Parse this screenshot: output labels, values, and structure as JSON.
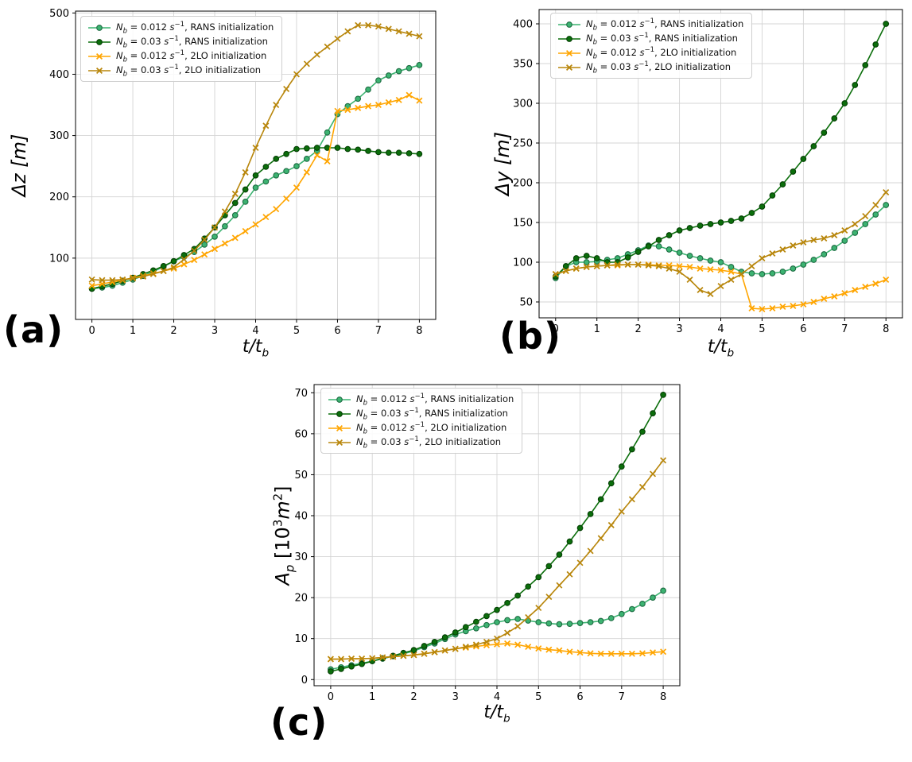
{
  "series_defs": [
    {
      "name": "nb-0012-rans",
      "marker": "o",
      "color": "#3cb371",
      "edge": "#1d6b42",
      "label_text": "N_b = 0.012 s^-1, RANS initialization",
      "label_segments": [
        {
          "text": "N",
          "style": "italic"
        },
        {
          "text": "b",
          "style": "subitalic"
        },
        {
          "text": " = 0.012 ",
          "style": ""
        },
        {
          "text": "s",
          "style": "italic"
        },
        {
          "text": "−1",
          "style": "sup"
        },
        {
          "text": ", RANS initialization",
          "style": ""
        }
      ]
    },
    {
      "name": "nb-003-rans",
      "marker": "o",
      "color": "#0b6e0b",
      "edge": "#053f05",
      "label_text": "N_b = 0.03 s^-1, RANS initialization",
      "label_segments": [
        {
          "text": "N",
          "style": "italic"
        },
        {
          "text": "b",
          "style": "subitalic"
        },
        {
          "text": " = 0.03 ",
          "style": ""
        },
        {
          "text": "s",
          "style": "italic"
        },
        {
          "text": "−1",
          "style": "sup"
        },
        {
          "text": ", RANS initialization",
          "style": ""
        }
      ]
    },
    {
      "name": "nb-0012-2lo",
      "marker": "x",
      "color": "#ffa500",
      "edge": "#ffa500",
      "label_text": "N_b = 0.012 s^-1, 2LO initialization",
      "label_segments": [
        {
          "text": "N",
          "style": "italic"
        },
        {
          "text": "b",
          "style": "subitalic"
        },
        {
          "text": " = 0.012 ",
          "style": ""
        },
        {
          "text": "s",
          "style": "italic"
        },
        {
          "text": "−1",
          "style": "sup"
        },
        {
          "text": ", 2LO initialization",
          "style": ""
        }
      ]
    },
    {
      "name": "nb-003-2lo",
      "marker": "x",
      "color": "#b8860b",
      "edge": "#b8860b",
      "label_text": "N_b = 0.03 s^-1, 2LO initialization",
      "label_segments": [
        {
          "text": "N",
          "style": "italic"
        },
        {
          "text": "b",
          "style": "subitalic"
        },
        {
          "text": " = 0.03 ",
          "style": ""
        },
        {
          "text": "s",
          "style": "italic"
        },
        {
          "text": "−1",
          "style": "sup"
        },
        {
          "text": ", 2LO initialization",
          "style": ""
        }
      ]
    }
  ],
  "xlabel_text": "t/t_b",
  "xlabel_segments": [
    {
      "text": "t/t",
      "style": "italic"
    },
    {
      "text": "b",
      "style": "subitalic"
    }
  ],
  "grid_color": "#d4d4d4",
  "chart_data": [
    {
      "id": "a",
      "type": "line",
      "panel_label": "(a)",
      "ylabel_text": "Δz [m]",
      "ylabel_segments": [
        {
          "text": "Δz [m]",
          "style": "italic"
        }
      ],
      "xlim": [
        -0.4,
        8.4
      ],
      "ylim": [
        0,
        503
      ],
      "xticks": [
        0,
        1,
        2,
        3,
        4,
        5,
        6,
        7,
        8
      ],
      "yticks": [
        100,
        200,
        300,
        400,
        500
      ],
      "grid": true,
      "legend_position": "upper left",
      "x": [
        0,
        0.25,
        0.5,
        0.75,
        1,
        1.25,
        1.5,
        1.75,
        2,
        2.25,
        2.5,
        2.75,
        3,
        3.25,
        3.5,
        3.75,
        4,
        4.25,
        4.5,
        4.75,
        5,
        5.25,
        5.5,
        5.75,
        6,
        6.25,
        6.5,
        6.75,
        7,
        7.25,
        7.5,
        7.75,
        8
      ],
      "series": [
        {
          "def": 0,
          "values": [
            50,
            52,
            55,
            60,
            65,
            71,
            78,
            86,
            95,
            102,
            110,
            122,
            135,
            152,
            170,
            192,
            215,
            225,
            235,
            242,
            250,
            262,
            275,
            305,
            335,
            348,
            360,
            375,
            390,
            398,
            405,
            410,
            415
          ]
        },
        {
          "def": 1,
          "values": [
            50,
            54,
            58,
            63,
            68,
            74,
            80,
            87,
            95,
            105,
            115,
            132,
            150,
            170,
            190,
            212,
            235,
            249,
            262,
            270,
            278,
            279,
            280,
            280,
            280,
            278,
            277,
            275,
            273,
            272,
            272,
            271,
            270
          ]
        },
        {
          "def": 2,
          "values": [
            55,
            58,
            61,
            64,
            68,
            71,
            75,
            79,
            83,
            90,
            97,
            106,
            115,
            124,
            133,
            144,
            155,
            167,
            180,
            197,
            215,
            240,
            268,
            258,
            340,
            342,
            345,
            348,
            350,
            354,
            358,
            366,
            357
          ]
        },
        {
          "def": 3,
          "values": [
            65,
            64,
            64,
            65,
            67,
            70,
            74,
            79,
            85,
            98,
            112,
            130,
            150,
            176,
            205,
            240,
            280,
            316,
            350,
            376,
            400,
            417,
            432,
            445,
            458,
            470,
            480,
            480,
            478,
            474,
            470,
            466,
            462
          ]
        }
      ]
    },
    {
      "id": "b",
      "type": "line",
      "panel_label": "(b)",
      "ylabel_text": "Δy [m]",
      "ylabel_segments": [
        {
          "text": "Δy [m]",
          "style": "italic"
        }
      ],
      "xlim": [
        -0.4,
        8.4
      ],
      "ylim": [
        30,
        418
      ],
      "xticks": [
        0,
        1,
        2,
        3,
        4,
        5,
        6,
        7,
        8
      ],
      "yticks": [
        50,
        100,
        150,
        200,
        250,
        300,
        350,
        400
      ],
      "grid": true,
      "legend_position": "upper left",
      "x": [
        0,
        0.25,
        0.5,
        0.75,
        1,
        1.25,
        1.5,
        1.75,
        2,
        2.25,
        2.5,
        2.75,
        3,
        3.25,
        3.5,
        3.75,
        4,
        4.25,
        4.5,
        4.75,
        5,
        5.25,
        5.5,
        5.75,
        6,
        6.25,
        6.5,
        6.75,
        7,
        7.25,
        7.5,
        7.75,
        8
      ],
      "series": [
        {
          "def": 0,
          "values": [
            80,
            95,
            100,
            100,
            101,
            103,
            105,
            110,
            115,
            121,
            120,
            116,
            112,
            108,
            105,
            102,
            100,
            94,
            88,
            86,
            85,
            86,
            88,
            92,
            97,
            103,
            110,
            118,
            127,
            137,
            148,
            160,
            172
          ]
        },
        {
          "def": 1,
          "values": [
            82,
            95,
            105,
            108,
            105,
            100,
            100,
            106,
            113,
            120,
            128,
            134,
            140,
            143,
            146,
            148,
            150,
            152,
            155,
            162,
            170,
            184,
            198,
            214,
            230,
            246,
            263,
            281,
            300,
            323,
            348,
            374,
            400
          ]
        },
        {
          "def": 2,
          "values": [
            85,
            89,
            92,
            94,
            95,
            96,
            96,
            97,
            97,
            97,
            96,
            96,
            95,
            94,
            92,
            91,
            90,
            88,
            85,
            42,
            41,
            42,
            44,
            45,
            47,
            50,
            54,
            57,
            61,
            65,
            69,
            73,
            78
          ]
        },
        {
          "def": 3,
          "values": [
            85,
            89,
            92,
            94,
            95,
            96,
            97,
            97,
            97,
            96,
            95,
            92,
            88,
            78,
            65,
            60,
            70,
            78,
            85,
            95,
            105,
            111,
            116,
            121,
            125,
            128,
            130,
            134,
            140,
            148,
            158,
            172,
            188
          ]
        }
      ]
    },
    {
      "id": "c",
      "type": "line",
      "panel_label": "(c)",
      "ylabel_text": "A_p [10^3 m^2]",
      "ylabel_segments": [
        {
          "text": "A",
          "style": "italic"
        },
        {
          "text": "p",
          "style": "subitalic"
        },
        {
          "text": " [10",
          "style": ""
        },
        {
          "text": "3",
          "style": "sup"
        },
        {
          "text": "m",
          "style": "italic"
        },
        {
          "text": "2",
          "style": "sup"
        },
        {
          "text": "]",
          "style": ""
        }
      ],
      "xlim": [
        -0.4,
        8.4
      ],
      "ylim": [
        -1.5,
        72
      ],
      "xticks": [
        0,
        1,
        2,
        3,
        4,
        5,
        6,
        7,
        8
      ],
      "yticks": [
        0,
        10,
        20,
        30,
        40,
        50,
        60,
        70
      ],
      "grid": true,
      "legend_position": "upper left",
      "x": [
        0,
        0.25,
        0.5,
        0.75,
        1,
        1.25,
        1.5,
        1.75,
        2,
        2.25,
        2.5,
        2.75,
        3,
        3.25,
        3.5,
        3.75,
        4,
        4.25,
        4.5,
        4.75,
        5,
        5.25,
        5.5,
        5.75,
        6,
        6.25,
        6.5,
        6.75,
        7,
        7.25,
        7.5,
        7.75,
        8
      ],
      "series": [
        {
          "def": 0,
          "values": [
            2.5,
            3,
            3.5,
            4,
            4.5,
            5.1,
            5.7,
            6.3,
            7,
            7.9,
            8.8,
            9.9,
            11,
            11.8,
            12.5,
            13.3,
            14,
            14.5,
            14.8,
            14.4,
            14,
            13.7,
            13.5,
            13.6,
            13.8,
            14,
            14.3,
            15,
            16,
            17.2,
            18.5,
            20,
            21.7
          ]
        },
        {
          "def": 1,
          "values": [
            2,
            2.6,
            3.2,
            3.8,
            4.5,
            5.2,
            5.8,
            6.5,
            7.2,
            8.2,
            9.2,
            10.3,
            11.5,
            12.8,
            14.1,
            15.5,
            17,
            18.7,
            20.5,
            22.7,
            25,
            27.7,
            30.5,
            33.7,
            37,
            40.4,
            44,
            47.9,
            52,
            56.2,
            60.5,
            65,
            69.5
          ]
        },
        {
          "def": 2,
          "values": [
            5,
            5,
            5.1,
            5.1,
            5.2,
            5.4,
            5.6,
            5.8,
            6,
            6.3,
            6.7,
            7.1,
            7.5,
            7.8,
            8.1,
            8.4,
            8.6,
            8.8,
            8.5,
            8,
            7.6,
            7.3,
            7.1,
            6.8,
            6.6,
            6.4,
            6.3,
            6.3,
            6.3,
            6.3,
            6.4,
            6.6,
            6.8
          ]
        },
        {
          "def": 3,
          "values": [
            5,
            5,
            5.1,
            5.1,
            5.2,
            5.4,
            5.6,
            5.8,
            6,
            6.3,
            6.7,
            7.1,
            7.5,
            8,
            8.5,
            9.2,
            10,
            11.4,
            13,
            15.2,
            17.5,
            20.2,
            23,
            25.7,
            28.5,
            31.4,
            34.5,
            37.7,
            41,
            44,
            47,
            50.2,
            53.5
          ]
        }
      ]
    }
  ]
}
